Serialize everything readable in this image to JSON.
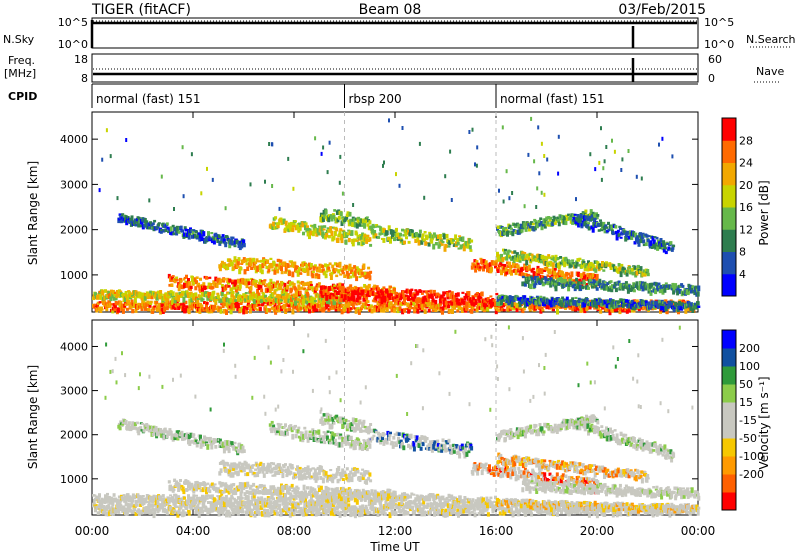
{
  "header": {
    "title": "TIGER (fitACF)",
    "beam": "Beam 08",
    "date": "03/Feb/2015"
  },
  "noise_panel": {
    "left_label": "N.Sky",
    "right_label": "N.Search",
    "left_ticks": [
      "10^5",
      "10^0"
    ],
    "right_ticks": [
      "10^5",
      "10^0"
    ]
  },
  "freq_panel": {
    "left_label_1": "Freq.",
    "left_label_2": "[MHz]",
    "right_label": "Nave",
    "left_ticks": [
      "18",
      "8"
    ],
    "right_ticks": [
      "60",
      "0"
    ]
  },
  "cpid": {
    "label": "CPID",
    "segments": [
      {
        "name": "normal (fast) 151",
        "start_hour": 0
      },
      {
        "name": "rbsp 200",
        "start_hour": 10
      },
      {
        "name": "normal (fast) 151",
        "start_hour": 16
      }
    ]
  },
  "colors": {
    "power_scale": [
      "#0000ff",
      "#1e4fb0",
      "#2e7d4f",
      "#66b84a",
      "#c8d400",
      "#f2a800",
      "#ff6a00",
      "#ff0000"
    ],
    "velocity_scale": [
      "#ff0000",
      "#ff6000",
      "#ff9a00",
      "#f6c800",
      "#c8c8c0",
      "#c8c8c0",
      "#8ccc4a",
      "#2f9a3a",
      "#1050a0",
      "#0000ff"
    ]
  },
  "chart_data": [
    {
      "type": "heatmap",
      "name": "power",
      "ylabel": "Slant Range [km]",
      "xlabel": "",
      "xlim": [
        0,
        24
      ],
      "ylim": [
        180,
        4600
      ],
      "x_ticks": [
        "00:00",
        "04:00",
        "08:00",
        "12:00",
        "16:00",
        "20:00",
        "00:00"
      ],
      "y_ticks": [
        1000,
        2000,
        3000,
        4000
      ],
      "colorbar_label": "Power [dB]",
      "colorbar_ticks": [
        "28",
        "24",
        "20",
        "16",
        "12",
        "8",
        "4"
      ],
      "colorbar_range": [
        0,
        32
      ]
    },
    {
      "type": "heatmap",
      "name": "velocity",
      "ylabel": "Slant Range [km]",
      "xlabel": "Time UT",
      "xlim": [
        0,
        24
      ],
      "ylim": [
        180,
        4600
      ],
      "x_ticks": [
        "00:00",
        "04:00",
        "08:00",
        "12:00",
        "16:00",
        "20:00",
        "00:00"
      ],
      "y_ticks": [
        1000,
        2000,
        3000,
        4000
      ],
      "colorbar_label": "Velocity [m s⁻¹]",
      "colorbar_ticks": [
        "200",
        "100",
        "50",
        "15",
        "-15",
        "-50",
        "-100",
        "-200"
      ]
    }
  ]
}
